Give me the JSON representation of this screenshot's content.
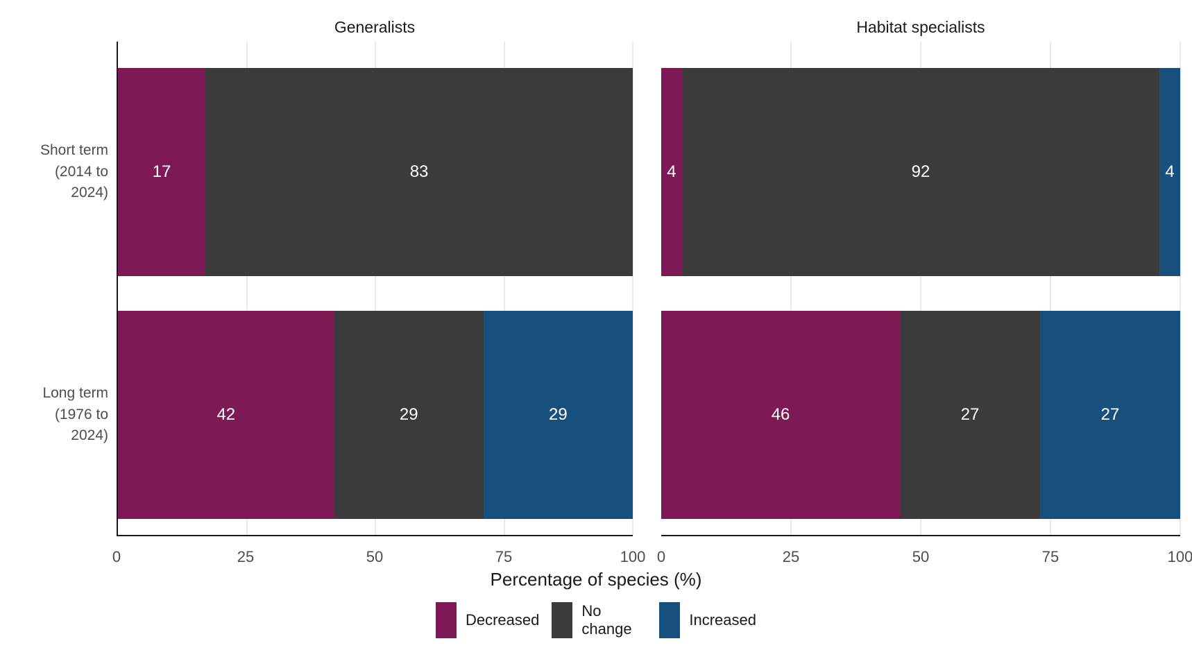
{
  "chart_data": {
    "type": "bar",
    "orientation": "horizontal",
    "stacked": true,
    "unit": "percent",
    "xlabel": "Percentage of species (%)",
    "xticks": [
      0,
      25,
      50,
      75,
      100
    ],
    "xlim": [
      0,
      100
    ],
    "grid": "vertical light gridlines at 25/50/75/100",
    "legend_position": "bottom-center",
    "series_names": [
      "Decreased",
      "No change",
      "Increased"
    ],
    "facets": [
      {
        "title": "Generalists",
        "rows": [
          {
            "category": "Short term\n(2014 to\n2024)",
            "segments": [
              {
                "name": "Decreased",
                "value": 17
              },
              {
                "name": "No change",
                "value": 83
              }
            ]
          },
          {
            "category": "Long term\n(1976 to\n2024)",
            "segments": [
              {
                "name": "Decreased",
                "value": 42
              },
              {
                "name": "No change",
                "value": 29
              },
              {
                "name": "Increased",
                "value": 29
              }
            ]
          }
        ]
      },
      {
        "title": "Habitat specialists",
        "rows": [
          {
            "category": "Short term\n(2014 to\n2024)",
            "segments": [
              {
                "name": "Decreased",
                "value": 4
              },
              {
                "name": "No change",
                "value": 92
              },
              {
                "name": "Increased",
                "value": 4
              }
            ]
          },
          {
            "category": "Long term\n(1976 to\n2024)",
            "segments": [
              {
                "name": "Decreased",
                "value": 46
              },
              {
                "name": "No change",
                "value": 27
              },
              {
                "name": "Increased",
                "value": 27
              }
            ]
          }
        ]
      }
    ]
  },
  "legend": {
    "items": [
      {
        "label": "Decreased"
      },
      {
        "label": "No change"
      },
      {
        "label": "Increased"
      }
    ]
  },
  "colors": {
    "decreased": "#7D1A56",
    "no_change": "#3B3B3B",
    "increased": "#17507D",
    "gridline": "#E9E9E9",
    "axis_line": "#1A1A1A",
    "tick_text": "#4D4D4D",
    "title_text": "#1A1A1A"
  }
}
